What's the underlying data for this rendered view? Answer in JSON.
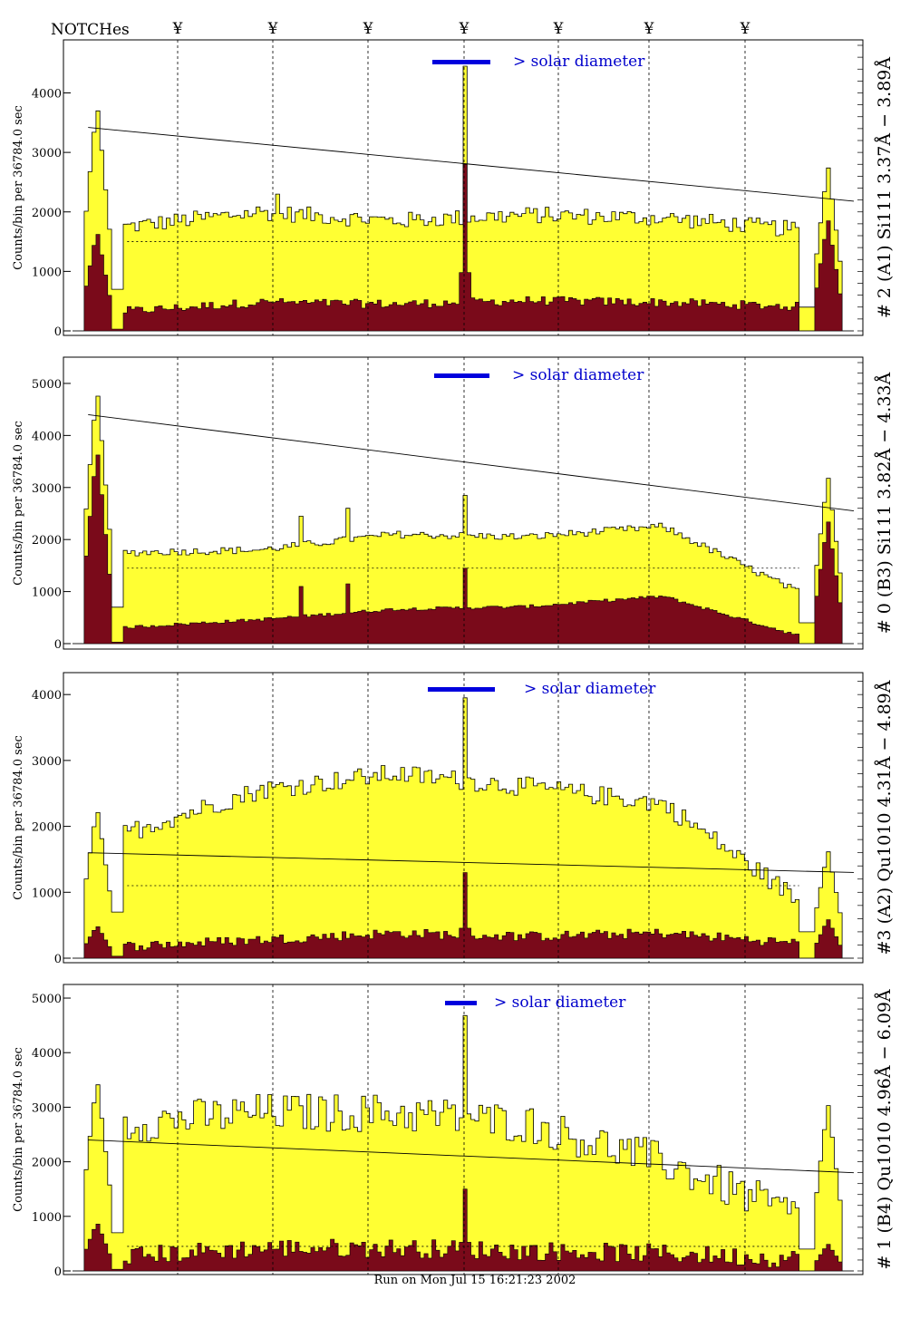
{
  "header": {
    "notches_label": "NOTCHes",
    "notch_symbol": "¥",
    "notch_count": 7
  },
  "footer": {
    "run_text": "Run on Mon Jul 15 16:21:23 2002"
  },
  "colors": {
    "fill_total": "#ffff33",
    "fill_core": "#7a0a1a",
    "solar_bar": "#0000dd"
  },
  "chart_data": [
    {
      "type": "area",
      "title": "# 2 (A1) Si111  3.37Å − 3.89Å",
      "ylabel": "Counts/bin per  36784.0 sec",
      "solar_label": "> solar diameter",
      "ylim": [
        0,
        4800
      ],
      "yticks": [
        0,
        1000,
        2000,
        3000,
        4000
      ],
      "bins": 200,
      "edge_left": [
        3850,
        1700
      ],
      "edge_right": [
        2800,
        1900
      ],
      "plateau": [
        1750,
        2000,
        1850,
        1950,
        1900,
        1700
      ],
      "plateau_noise": 140,
      "spikes": [
        {
          "x": 0.5,
          "v": 4450,
          "core": 2800
        },
        {
          "x": 0.26,
          "v": 2300,
          "core": 500
        }
      ],
      "core_level": [
        300,
        450,
        420,
        480,
        450,
        380
      ],
      "core_noise": 150,
      "trend_line": [
        3420,
        2180
      ],
      "dashed_level": 1500
    },
    {
      "type": "area",
      "title": "# 0 (B3) Si111  3.82Å − 4.33Å",
      "ylabel": "Counts/bin per  36784.0 sec",
      "solar_label": "> solar diameter",
      "ylim": [
        0,
        5400
      ],
      "yticks": [
        0,
        1000,
        2000,
        3000,
        4000,
        5000
      ],
      "bins": 200,
      "edge_left": [
        4950,
        3800
      ],
      "edge_right": [
        3250,
        2400
      ],
      "plateau": [
        1750,
        1800,
        2100,
        2050,
        2250,
        1000
      ],
      "plateau_noise": 70,
      "spikes": [
        {
          "x": 0.5,
          "v": 2850,
          "core": 1450
        },
        {
          "x": 0.29,
          "v": 2450,
          "core": 1100
        },
        {
          "x": 0.35,
          "v": 2600,
          "core": 1150
        }
      ],
      "core_level": [
        300,
        450,
        650,
        700,
        900,
        150
      ],
      "core_noise": 60,
      "trend_line": [
        4400,
        2550
      ],
      "dashed_level": 1450
    },
    {
      "type": "area",
      "title": "#3 (A2) Qu1010  4.31Å − 4.89Å",
      "ylabel": "Counts/bin per  36784.0 sec",
      "solar_label": "> solar diameter",
      "ylim": [
        0,
        4250
      ],
      "yticks": [
        0,
        1000,
        2000,
        3000,
        4000
      ],
      "bins": 200,
      "edge_left": [
        2300,
        500
      ],
      "edge_right": [
        1650,
        600
      ],
      "plateau": [
        1900,
        2550,
        2800,
        2600,
        2350,
        900
      ],
      "plateau_noise": 150,
      "spikes": [
        {
          "x": 0.5,
          "v": 3950,
          "core": 1300
        }
      ],
      "core_level": [
        150,
        250,
        350,
        300,
        350,
        200
      ],
      "core_noise": 150,
      "trend_line": [
        1600,
        1300
      ],
      "dashed_level": 1100
    },
    {
      "type": "area",
      "title": "# 1 (B4) Qu1010 4.96Å − 6.09Å",
      "ylabel": "Counts/bin per  36784.0 sec",
      "solar_label": "> solar diameter",
      "ylim": [
        0,
        5150
      ],
      "yticks": [
        0,
        1000,
        2000,
        3000,
        4000,
        5000
      ],
      "bins": 200,
      "edge_left": [
        3550,
        900
      ],
      "edge_right": [
        3100,
        500
      ],
      "plateau": [
        2700,
        2900,
        2900,
        2700,
        2000,
        1000
      ],
      "plateau_noise": 360,
      "spikes": [
        {
          "x": 0.5,
          "v": 4680,
          "core": 1500
        }
      ],
      "core_level": [
        200,
        350,
        350,
        300,
        250,
        150
      ],
      "core_noise": 350,
      "trend_line": [
        2400,
        1800
      ],
      "dashed_level": 450
    }
  ]
}
